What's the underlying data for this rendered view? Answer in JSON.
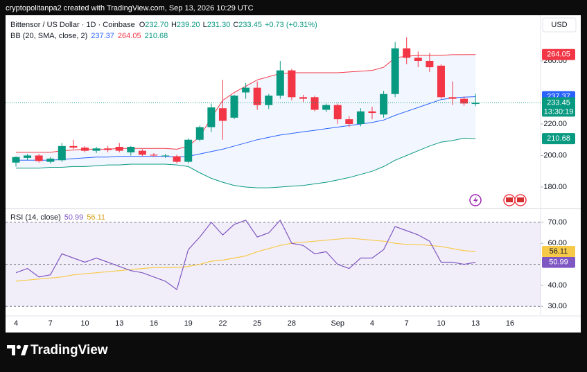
{
  "header": {
    "attribution": "cryptopolitanpa2 created with TradingView.com, Sep 13, 2026 10:29 UTC",
    "symbol": "Bittensor / US Dollar · 1D · Coinbase",
    "ohlc": [
      {
        "key": "O",
        "value": "232.70"
      },
      {
        "key": "H",
        "value": "239.20"
      },
      {
        "key": "L",
        "value": "231.30"
      },
      {
        "key": "C",
        "value": "233.45"
      }
    ],
    "change": "+0.73 (+0.31%)",
    "currency": "USD"
  },
  "footer": {
    "logo": "TradingView"
  },
  "chart_data": [
    {
      "type": "candlestick",
      "indicator": "BB (20, SMA, close, 2)",
      "categories": [
        "4",
        null,
        null,
        "7",
        null,
        null,
        "10",
        null,
        null,
        "13",
        null,
        null,
        "16",
        null,
        null,
        "19",
        null,
        null,
        "22",
        null,
        null,
        "25",
        null,
        null,
        "28",
        null,
        null,
        null,
        "Sep",
        null,
        null,
        "4",
        null,
        null,
        "7",
        null,
        null,
        "10",
        null,
        null,
        "13",
        null,
        null,
        "16"
      ],
      "candles": {
        "open": [
          195.5,
          198.5,
          200,
          196,
          197,
          206,
          205,
          203,
          204.5,
          205.5,
          202,
          203,
          200.5,
          200,
          199.5,
          196,
          210,
          218,
          230,
          224,
          240,
          243,
          232,
          238,
          254,
          237,
          237,
          229,
          232,
          223,
          220,
          228,
          226,
          239,
          268,
          262,
          260,
          257,
          237,
          236,
          232.7,
          null,
          null,
          null
        ],
        "high": [
          199.5,
          201,
          201,
          199,
          208,
          210,
          206,
          205.5,
          206,
          208,
          206,
          204,
          201.5,
          201,
          200.5,
          211,
          219,
          233,
          248,
          238.5,
          246,
          247,
          239,
          260,
          255,
          238.5,
          238,
          233,
          233,
          225,
          230,
          231,
          241,
          272,
          275,
          266,
          265,
          258,
          247,
          237.5,
          239.2,
          null,
          null,
          null
        ],
        "low": [
          193,
          197,
          195.5,
          195,
          196,
          204,
          202,
          201.5,
          202,
          202,
          200,
          199.5,
          199,
          198.5,
          195,
          195,
          209,
          215,
          210,
          223,
          236,
          229,
          229.5,
          236,
          235,
          234,
          228,
          227.5,
          220,
          218,
          218.5,
          223,
          224,
          237,
          258,
          256,
          253,
          236,
          232,
          231.5,
          231.3,
          null,
          null,
          null
        ],
        "close": [
          199,
          200,
          196.5,
          198,
          206,
          205,
          203,
          204.5,
          203.5,
          203,
          205.5,
          200.5,
          200,
          200,
          196,
          210,
          218,
          230.5,
          222,
          238,
          243,
          232,
          238,
          254,
          237,
          236,
          229,
          232,
          223,
          220,
          228,
          227,
          239,
          268,
          262,
          260,
          256,
          237,
          236,
          233,
          233.45,
          null,
          null,
          null
        ]
      },
      "up_color": "#089981",
      "down_color": "#f23645",
      "countdown": "13:30:19",
      "series": [
        {
          "color": "#2962ff",
          "values": [
            197,
            197,
            197,
            197,
            197.5,
            198,
            198.5,
            199,
            199,
            199.5,
            199.5,
            199.5,
            199.5,
            199.5,
            199,
            199.5,
            201,
            202.5,
            204,
            206,
            208,
            210,
            211.5,
            213,
            214,
            215,
            216,
            217,
            218,
            219,
            220,
            221,
            222.5,
            225.5,
            228,
            230.5,
            233,
            235.5,
            236.5,
            237,
            237.37,
            null,
            null,
            null
          ]
        },
        {
          "color": "#f23645",
          "values": [
            202,
            202,
            202,
            202,
            203,
            203.5,
            204,
            204,
            204,
            204.5,
            204.5,
            204.5,
            204.5,
            204.5,
            204,
            206,
            212,
            224,
            235,
            240,
            244,
            248,
            250,
            252,
            252.5,
            252.5,
            252.5,
            252.5,
            252.5,
            253,
            253.5,
            254,
            256,
            262,
            263,
            263.5,
            263.5,
            263.5,
            264,
            264,
            264.05,
            null,
            null,
            null
          ]
        },
        {
          "color": "#089981",
          "values": [
            192,
            192,
            192,
            192.5,
            192.5,
            193,
            193,
            193.5,
            194,
            194,
            194.5,
            194.5,
            194.5,
            194.5,
            194,
            193,
            189,
            185.5,
            183,
            181,
            180,
            179.5,
            179.5,
            180,
            180.5,
            181,
            182,
            183,
            184.5,
            186,
            188,
            190,
            193,
            197,
            200,
            203,
            206,
            208.5,
            209.5,
            211,
            210.68,
            null,
            null,
            null
          ]
        }
      ],
      "band_color": "#2962ff",
      "ylim": [
        166.8,
        289
      ],
      "yticks": [
        {
          "value": 180,
          "label": "180.00"
        },
        {
          "value": 200,
          "label": "200.00"
        },
        {
          "value": 220,
          "label": "220.00"
        },
        {
          "value": 260,
          "label": "260.00"
        }
      ]
    },
    {
      "type": "line",
      "indicator": "RSI (14, close)",
      "series": [
        {
          "color": "#7e57c2",
          "values": [
            46,
            48,
            44,
            45,
            55,
            53,
            51,
            53,
            51,
            49,
            47,
            46,
            44,
            42,
            38,
            57,
            63,
            70,
            64,
            69,
            71,
            63,
            65,
            71,
            60,
            59,
            55,
            56,
            50,
            48,
            53,
            53,
            57,
            68,
            66,
            64,
            61,
            51,
            51,
            50,
            50.99,
            null,
            null,
            null
          ]
        },
        {
          "color": "#f7c948",
          "values": [
            42,
            42.5,
            43,
            43.5,
            44,
            45,
            45.5,
            46,
            46.5,
            47,
            47.5,
            48,
            48.5,
            48.5,
            48.5,
            49,
            50,
            51.5,
            52,
            53,
            54,
            56,
            57.5,
            59,
            60,
            60.5,
            61,
            61.5,
            62,
            62.5,
            62,
            61.5,
            61,
            60,
            59.5,
            59.5,
            59,
            58.5,
            57.5,
            56.5,
            56.11,
            null,
            null,
            null
          ]
        }
      ],
      "bands": [
        70,
        50,
        30
      ],
      "band_color": "#7e57c2",
      "ylim": [
        25.8,
        75.9
      ],
      "yticks": [
        {
          "value": 30,
          "label": "30.00"
        },
        {
          "value": 40,
          "label": "40.00"
        },
        {
          "value": 60,
          "label": "60.00"
        },
        {
          "value": 70,
          "label": "70.00"
        }
      ]
    }
  ]
}
